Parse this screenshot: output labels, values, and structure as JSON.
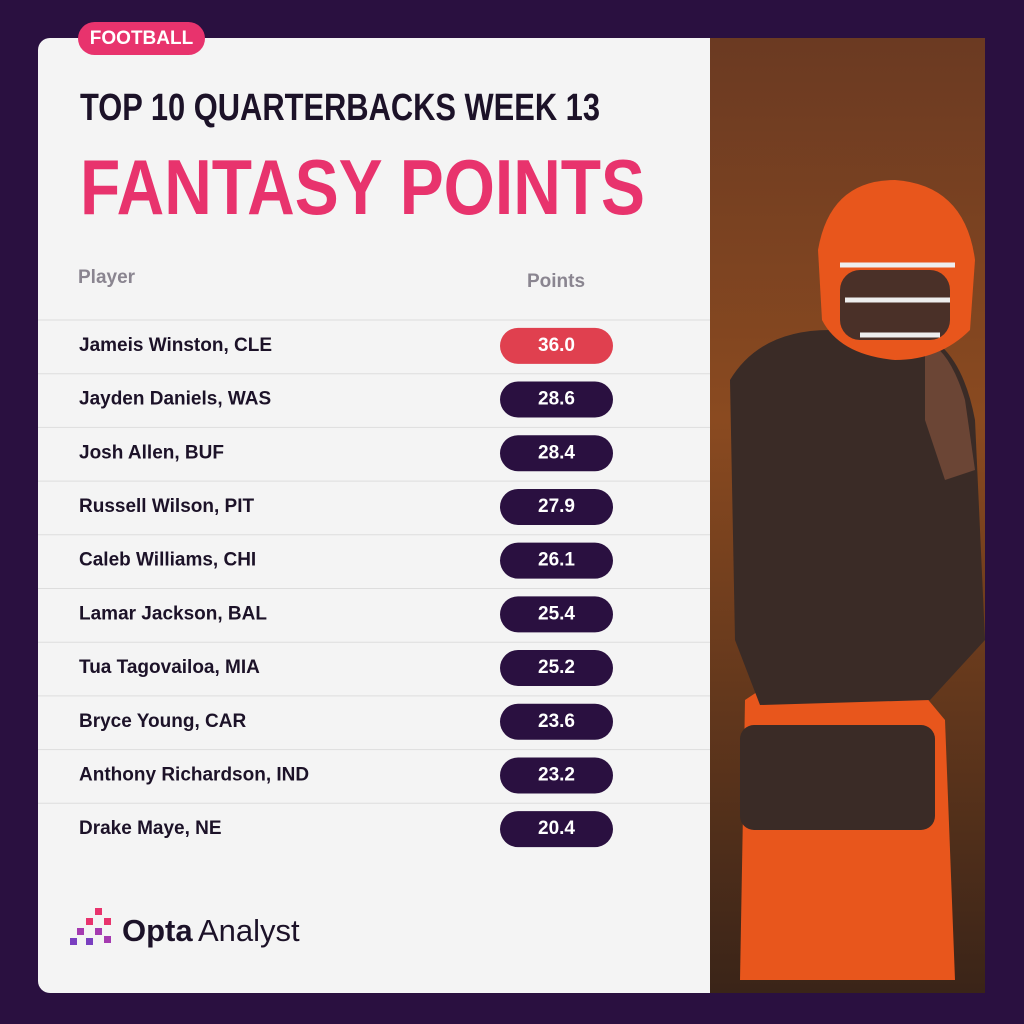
{
  "tag": "FOOTBALL",
  "header": {
    "title": "TOP 10 QUARTERBACKS WEEK 13",
    "subtitle": "FANTASY POINTS"
  },
  "table": {
    "columns": [
      "Player",
      "Points"
    ],
    "rows": [
      [
        "Jameis Winston, CLE",
        "36.0"
      ],
      [
        "Jayden Daniels, WAS",
        "28.6"
      ],
      [
        "Josh Allen, BUF",
        "28.4"
      ],
      [
        "Russell Wilson, PIT",
        "27.9"
      ],
      [
        "Caleb Williams, CHI",
        "26.1"
      ],
      [
        "Lamar Jackson, BAL",
        "25.4"
      ],
      [
        "Tua Tagovailoa, MIA",
        "25.2"
      ],
      [
        "Bryce Young, CAR",
        "23.6"
      ],
      [
        "Anthony Richardson, IND",
        "23.2"
      ],
      [
        "Drake Maye, NE",
        "20.4"
      ]
    ]
  },
  "logo": {
    "brand": "Opta",
    "product": "Analyst"
  }
}
